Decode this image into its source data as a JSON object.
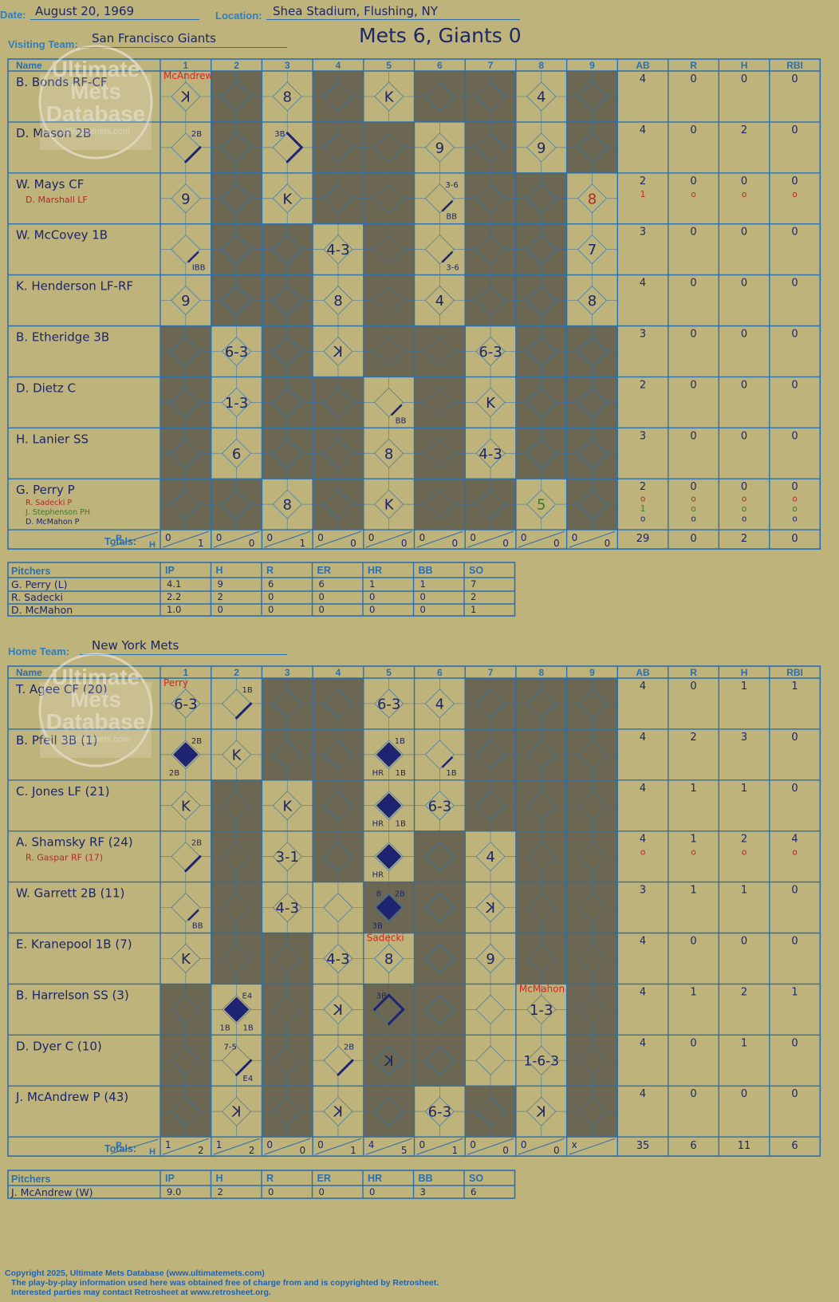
{
  "header": {
    "date_label": "Date:",
    "date": "August 20, 1969",
    "location_label": "Location:",
    "location": "Shea Stadium, Flushing, NY",
    "title": "Mets 6, Giants 0",
    "visiting_label": "Visiting Team:",
    "visiting_team": "San Francisco Giants",
    "home_label": "Home Team:",
    "home_team": "New York Mets"
  },
  "watermark": [
    "Ultimate",
    "Mets",
    "Database",
    "ultimatemets.com"
  ],
  "columns": {
    "name": "Name",
    "innings": [
      "1",
      "2",
      "3",
      "4",
      "5",
      "6",
      "7",
      "8",
      "9"
    ],
    "stats": [
      "AB",
      "R",
      "H",
      "RBI"
    ],
    "totals_label": "Totals:",
    "r_label": "R",
    "h_label": "H"
  },
  "pitcher_columns": {
    "name": "Pitchers",
    "stats": [
      "IP",
      "H",
      "R",
      "ER",
      "HR",
      "BB",
      "SO"
    ]
  },
  "colors": {
    "blue": "#2a6fae",
    "ink": "#1c2668",
    "red": "#e02020",
    "darkred": "#b4282a",
    "green": "#3a7a2a",
    "shade": "#6b6752",
    "paper": "#bfb37c"
  },
  "visitor": {
    "shaded": [
      [
        2,
        4,
        6,
        7,
        9
      ],
      [
        2,
        4,
        5,
        7,
        9
      ],
      [
        2,
        4,
        5,
        7,
        8
      ],
      [
        2,
        3,
        5,
        7,
        8
      ],
      [
        2,
        3,
        5,
        7,
        8
      ],
      [
        1,
        3,
        5,
        6,
        8,
        9
      ],
      [
        1,
        3,
        4,
        6,
        8,
        9
      ],
      [
        1,
        3,
        4,
        6,
        8,
        9
      ],
      [
        1,
        2,
        4,
        6,
        7,
        9
      ]
    ],
    "batters": [
      {
        "name": "B. Bonds RF-CF",
        "subs": [],
        "ab": [
          "4"
        ],
        "r": [
          "0"
        ],
        "h": [
          "0"
        ],
        "rbi": [
          "0"
        ]
      },
      {
        "name": "D. Mason 2B",
        "subs": [],
        "ab": [
          "4"
        ],
        "r": [
          "0"
        ],
        "h": [
          "2"
        ],
        "rbi": [
          "0"
        ]
      },
      {
        "name": "W. Mays CF",
        "subs": [
          {
            "name": "D. Marshall LF",
            "color": "#b4282a"
          }
        ],
        "ab": [
          "2",
          "1"
        ],
        "r": [
          "0",
          "o"
        ],
        "h": [
          "0",
          "o"
        ],
        "rbi": [
          "0",
          "o"
        ]
      },
      {
        "name": "W. McCovey 1B",
        "subs": [],
        "ab": [
          "3"
        ],
        "r": [
          "0"
        ],
        "h": [
          "0"
        ],
        "rbi": [
          "0"
        ]
      },
      {
        "name": "K. Henderson LF-RF",
        "subs": [],
        "ab": [
          "4"
        ],
        "r": [
          "0"
        ],
        "h": [
          "0"
        ],
        "rbi": [
          "0"
        ]
      },
      {
        "name": "B. Etheridge 3B",
        "subs": [],
        "ab": [
          "3"
        ],
        "r": [
          "0"
        ],
        "h": [
          "0"
        ],
        "rbi": [
          "0"
        ]
      },
      {
        "name": "D. Dietz C",
        "subs": [],
        "ab": [
          "2"
        ],
        "r": [
          "0"
        ],
        "h": [
          "0"
        ],
        "rbi": [
          "0"
        ]
      },
      {
        "name": "H. Lanier SS",
        "subs": [],
        "ab": [
          "3"
        ],
        "r": [
          "0"
        ],
        "h": [
          "0"
        ],
        "rbi": [
          "0"
        ]
      },
      {
        "name": "G. Perry P",
        "subs": [
          {
            "name": "R. Sadecki P",
            "color": "#b4282a"
          },
          {
            "name": "J. Stephenson PH",
            "color": "#3a7a2a"
          },
          {
            "name": "D. McMahon P",
            "color": "#1c2668"
          }
        ],
        "ab": [
          "2",
          "o",
          "1",
          "o"
        ],
        "r": [
          "0",
          "o",
          "o",
          "o"
        ],
        "h": [
          "0",
          "o",
          "o",
          "o"
        ],
        "rbi": [
          "0",
          "o",
          "o",
          "o"
        ]
      }
    ],
    "plays": [
      {
        "row": 0,
        "inn": 1,
        "mark": "K",
        "rev": true
      },
      {
        "row": 0,
        "inn": 3,
        "mark": "8"
      },
      {
        "row": 0,
        "inn": 5,
        "mark": "K"
      },
      {
        "row": 0,
        "inn": 8,
        "mark": "4"
      },
      {
        "row": 1,
        "inn": 1,
        "lines": 1,
        "ann": {
          "tr": "2B"
        }
      },
      {
        "row": 1,
        "inn": 3,
        "lines": 2,
        "ann": {
          "tl": "3B"
        }
      },
      {
        "row": 1,
        "inn": 6,
        "mark": "9"
      },
      {
        "row": 1,
        "inn": 8,
        "mark": "9"
      },
      {
        "row": 2,
        "inn": 1,
        "mark": "9"
      },
      {
        "row": 2,
        "inn": 3,
        "mark": "K"
      },
      {
        "row": 2,
        "inn": 6,
        "lines": 0,
        "ann": {
          "tr": "3-6",
          "br": "BB"
        }
      },
      {
        "row": 2,
        "inn": 9,
        "mark": "8",
        "color": "#b4282a"
      },
      {
        "row": 3,
        "inn": 1,
        "lines": 0,
        "ann": {
          "br": "IBB"
        }
      },
      {
        "row": 3,
        "inn": 4,
        "mark": "4-3"
      },
      {
        "row": 3,
        "inn": 6,
        "lines": 0,
        "ann": {
          "br": "3-6"
        }
      },
      {
        "row": 3,
        "inn": 9,
        "mark": "7"
      },
      {
        "row": 4,
        "inn": 1,
        "mark": "9"
      },
      {
        "row": 4,
        "inn": 4,
        "mark": "8"
      },
      {
        "row": 4,
        "inn": 6,
        "mark": "4"
      },
      {
        "row": 4,
        "inn": 9,
        "mark": "8"
      },
      {
        "row": 5,
        "inn": 2,
        "mark": "6-3"
      },
      {
        "row": 5,
        "inn": 4,
        "mark": "K",
        "rev": true
      },
      {
        "row": 5,
        "inn": 7,
        "mark": "6-3"
      },
      {
        "row": 6,
        "inn": 2,
        "mark": "1-3"
      },
      {
        "row": 6,
        "inn": 5,
        "lines": 0,
        "ann": {
          "br": "BB"
        }
      },
      {
        "row": 6,
        "inn": 7,
        "mark": "K"
      },
      {
        "row": 7,
        "inn": 2,
        "mark": "6"
      },
      {
        "row": 7,
        "inn": 5,
        "mark": "8"
      },
      {
        "row": 7,
        "inn": 7,
        "mark": "4-3"
      },
      {
        "row": 8,
        "inn": 3,
        "mark": "8"
      },
      {
        "row": 8,
        "inn": 5,
        "mark": "K"
      },
      {
        "row": 8,
        "inn": 8,
        "mark": "5",
        "color": "#3a7a2a"
      }
    ],
    "pitcher_notes": [
      {
        "row": 0,
        "inn": 1,
        "text": "McAndrew"
      }
    ],
    "totals": {
      "innings": [
        [
          "0",
          "1"
        ],
        [
          "0",
          "0"
        ],
        [
          "0",
          "1"
        ],
        [
          "0",
          "0"
        ],
        [
          "0",
          "0"
        ],
        [
          "0",
          "0"
        ],
        [
          "0",
          "0"
        ],
        [
          "0",
          "0"
        ],
        [
          "0",
          "0"
        ]
      ],
      "ab": "29",
      "r": "0",
      "h": "2",
      "rbi": "0"
    },
    "pitchers": [
      {
        "name": "G. Perry (L)",
        "stats": [
          "4.1",
          "9",
          "6",
          "6",
          "1",
          "1",
          "7"
        ]
      },
      {
        "name": "R. Sadecki",
        "stats": [
          "2.2",
          "2",
          "0",
          "0",
          "0",
          "0",
          "2"
        ]
      },
      {
        "name": "D. McMahon",
        "stats": [
          "1.0",
          "0",
          "0",
          "0",
          "0",
          "0",
          "1"
        ]
      }
    ]
  },
  "home": {
    "shaded": [
      [
        3,
        4,
        7,
        8,
        9
      ],
      [
        3,
        4,
        7,
        8,
        9
      ],
      [
        2,
        4,
        7,
        8,
        9
      ],
      [
        2,
        4,
        6,
        8,
        9
      ],
      [
        2,
        5,
        6,
        8,
        9
      ],
      [
        2,
        3,
        6,
        8,
        9
      ],
      [
        1,
        3,
        5,
        6,
        9
      ],
      [
        1,
        3,
        5,
        6,
        9
      ],
      [
        1,
        3,
        5,
        7,
        9
      ]
    ],
    "batters": [
      {
        "name": "T. Agee CF (20)",
        "subs": [],
        "ab": [
          "4"
        ],
        "r": [
          "0"
        ],
        "h": [
          "1"
        ],
        "rbi": [
          "1"
        ]
      },
      {
        "name": "B. Pfeil 3B (1)",
        "subs": [],
        "ab": [
          "4"
        ],
        "r": [
          "2"
        ],
        "h": [
          "3"
        ],
        "rbi": [
          "0"
        ]
      },
      {
        "name": "C. Jones LF (21)",
        "subs": [],
        "ab": [
          "4"
        ],
        "r": [
          "1"
        ],
        "h": [
          "1"
        ],
        "rbi": [
          "0"
        ]
      },
      {
        "name": "A. Shamsky RF (24)",
        "subs": [
          {
            "name": "R. Gaspar RF (17)",
            "color": "#b4282a"
          }
        ],
        "ab": [
          "4",
          "o"
        ],
        "r": [
          "1",
          "o"
        ],
        "h": [
          "2",
          "o"
        ],
        "rbi": [
          "4",
          "o"
        ]
      },
      {
        "name": "W. Garrett 2B (11)",
        "subs": [],
        "ab": [
          "3"
        ],
        "r": [
          "1"
        ],
        "h": [
          "1"
        ],
        "rbi": [
          "0"
        ]
      },
      {
        "name": "E. Kranepool 1B (7)",
        "subs": [],
        "ab": [
          "4"
        ],
        "r": [
          "0"
        ],
        "h": [
          "0"
        ],
        "rbi": [
          "0"
        ]
      },
      {
        "name": "B. Harrelson SS (3)",
        "subs": [],
        "ab": [
          "4"
        ],
        "r": [
          "1"
        ],
        "h": [
          "2"
        ],
        "rbi": [
          "1"
        ]
      },
      {
        "name": "D. Dyer C (10)",
        "subs": [],
        "ab": [
          "4"
        ],
        "r": [
          "0"
        ],
        "h": [
          "1"
        ],
        "rbi": [
          "0"
        ]
      },
      {
        "name": "J. McAndrew P (43)",
        "subs": [],
        "ab": [
          "4"
        ],
        "r": [
          "0"
        ],
        "h": [
          "0"
        ],
        "rbi": [
          "0"
        ]
      }
    ],
    "plays": [
      {
        "row": 0,
        "inn": 1,
        "mark": "6-3"
      },
      {
        "row": 0,
        "inn": 2,
        "lines": 1,
        "ann": {
          "tr": "1B"
        }
      },
      {
        "row": 0,
        "inn": 5,
        "mark": "6-3"
      },
      {
        "row": 0,
        "inn": 6,
        "mark": "4"
      },
      {
        "row": 1,
        "inn": 1,
        "fill": true,
        "ann": {
          "tr": "2B",
          "bl": "2B"
        }
      },
      {
        "row": 1,
        "inn": 2,
        "mark": "K"
      },
      {
        "row": 1,
        "inn": 5,
        "fill": true,
        "ann": {
          "tr": "1B",
          "bl": "HR",
          "br": "1B"
        }
      },
      {
        "row": 1,
        "inn": 6,
        "lines": 0,
        "ann": {
          "br": "1B"
        }
      },
      {
        "row": 2,
        "inn": 1,
        "mark": "K"
      },
      {
        "row": 2,
        "inn": 3,
        "mark": "K"
      },
      {
        "row": 2,
        "inn": 5,
        "fill": true,
        "ann": {
          "bl": "HR",
          "br": "1B"
        }
      },
      {
        "row": 2,
        "inn": 6,
        "mark": "6-3"
      },
      {
        "row": 3,
        "inn": 1,
        "lines": 1,
        "ann": {
          "tr": "2B"
        }
      },
      {
        "row": 3,
        "inn": 3,
        "mark": "3-1"
      },
      {
        "row": 3,
        "inn": 5,
        "fill": true,
        "ann": {
          "bl": "HR"
        }
      },
      {
        "row": 3,
        "inn": 7,
        "mark": "4"
      },
      {
        "row": 4,
        "inn": 1,
        "lines": 0,
        "ann": {
          "br": "BB"
        }
      },
      {
        "row": 4,
        "inn": 3,
        "mark": "4-3"
      },
      {
        "row": 4,
        "inn": 5,
        "fill": true,
        "ann": {
          "tl": "8",
          "tr": "2B",
          "bl": "3B"
        }
      },
      {
        "row": 4,
        "inn": 7,
        "mark": "K",
        "rev": true
      },
      {
        "row": 5,
        "inn": 1,
        "mark": "K"
      },
      {
        "row": 5,
        "inn": 4,
        "mark": "4-3"
      },
      {
        "row": 5,
        "inn": 5,
        "mark": "8"
      },
      {
        "row": 5,
        "inn": 7,
        "mark": "9"
      },
      {
        "row": 6,
        "inn": 2,
        "fill": true,
        "ann": {
          "tr": "E4",
          "bl": "1B",
          "br": "1B"
        }
      },
      {
        "row": 6,
        "inn": 4,
        "mark": "K",
        "rev": true
      },
      {
        "row": 6,
        "inn": 5,
        "lines": 3,
        "ann": {
          "tl": "3B"
        }
      },
      {
        "row": 6,
        "inn": 8,
        "mark": "1-3"
      },
      {
        "row": 7,
        "inn": 2,
        "lines": 1,
        "ann": {
          "tl": "7-5",
          "br": "E4"
        }
      },
      {
        "row": 7,
        "inn": 4,
        "lines": 1,
        "ann": {
          "tr": "2B"
        }
      },
      {
        "row": 7,
        "inn": 5,
        "mark": "K",
        "rev": true
      },
      {
        "row": 7,
        "inn": 8,
        "mark": "1-6-3"
      },
      {
        "row": 8,
        "inn": 2,
        "mark": "K",
        "rev": true
      },
      {
        "row": 8,
        "inn": 4,
        "mark": "K",
        "rev": true
      },
      {
        "row": 8,
        "inn": 6,
        "mark": "6-3"
      },
      {
        "row": 8,
        "inn": 8,
        "mark": "K",
        "rev": true
      }
    ],
    "pitcher_notes": [
      {
        "row": 0,
        "inn": 1,
        "text": "Perry"
      },
      {
        "row": 5,
        "inn": 5,
        "text": "Sadecki"
      },
      {
        "row": 6,
        "inn": 8,
        "text": "McMahon"
      }
    ],
    "totals": {
      "innings": [
        [
          "1",
          "2"
        ],
        [
          "1",
          "2"
        ],
        [
          "0",
          "0"
        ],
        [
          "0",
          "1"
        ],
        [
          "4",
          "5"
        ],
        [
          "0",
          "1"
        ],
        [
          "0",
          "0"
        ],
        [
          "0",
          "0"
        ],
        [
          "x",
          ""
        ]
      ],
      "ab": "35",
      "r": "6",
      "h": "11",
      "rbi": "6"
    },
    "pitchers": [
      {
        "name": "J. McAndrew (W)",
        "stats": [
          "9.0",
          "2",
          "0",
          "0",
          "0",
          "3",
          "6"
        ]
      }
    ]
  },
  "footer": [
    "Copyright 2025, Ultimate Mets Database (www.ultimatemets.com)",
    "The play-by-play information used here was obtained free of charge from and is copyrighted by Retrosheet.",
    "Interested parties may contact Retrosheet at www.retrosheet.org."
  ]
}
